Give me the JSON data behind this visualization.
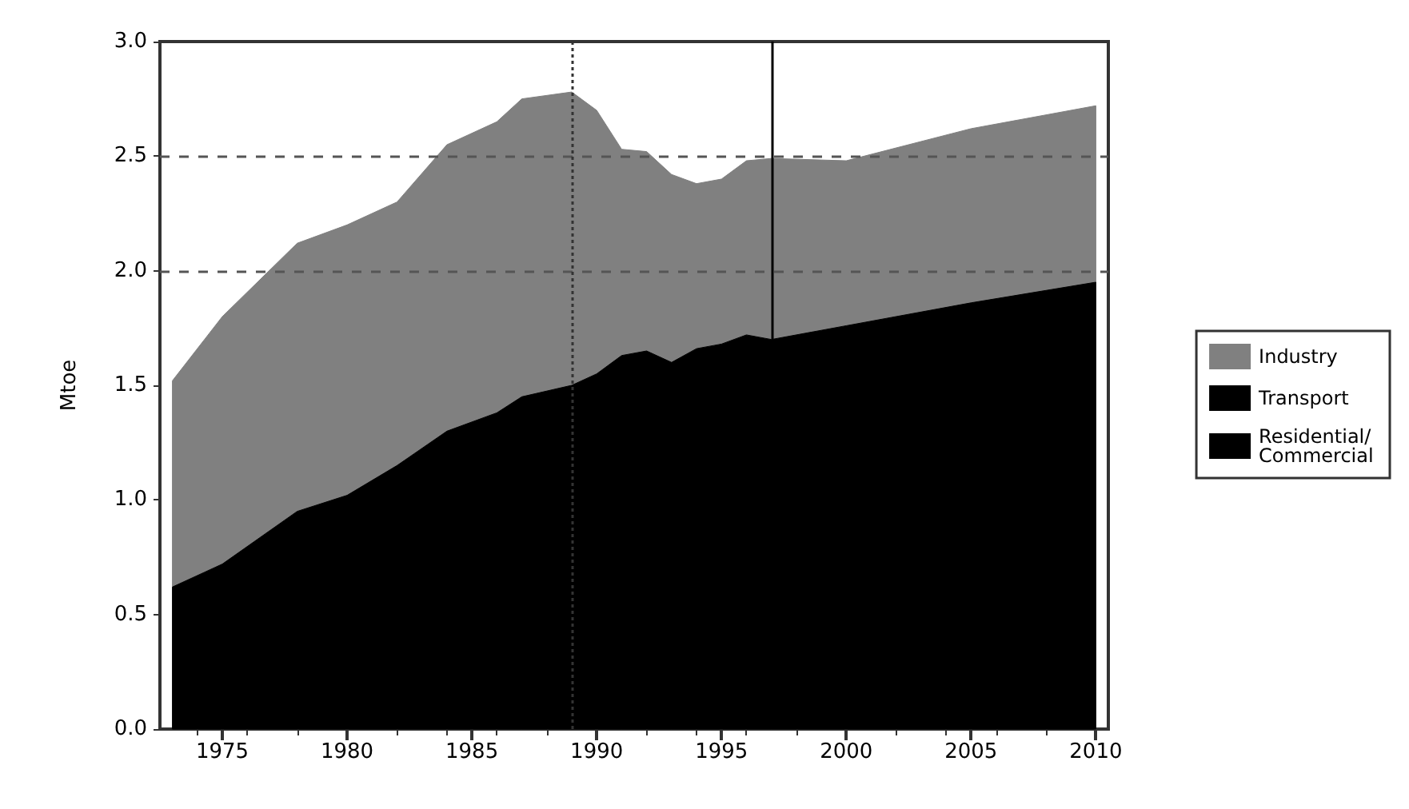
{
  "chart_data": {
    "type": "area",
    "stacked": true,
    "ylabel": "Mtoe",
    "x": [
      1973,
      1975,
      1978,
      1980,
      1982,
      1984,
      1986,
      1987,
      1989,
      1990,
      1991,
      1992,
      1993,
      1994,
      1995,
      1996,
      1997,
      2000,
      2005,
      2010
    ],
    "series": [
      {
        "name": "Residential/ Commercial",
        "color": "#000000",
        "values": [
          0.62,
          0.72,
          0.95,
          1.02,
          1.15,
          1.3,
          1.38,
          1.45,
          1.5,
          1.55,
          1.63,
          1.65,
          1.6,
          1.66,
          1.68,
          1.72,
          1.7,
          1.76,
          1.86,
          1.95
        ]
      },
      {
        "name": "Transport",
        "color": "#000000",
        "values": [
          null,
          null,
          null,
          null,
          null,
          null,
          null,
          null,
          null,
          null,
          null,
          null,
          null,
          null,
          null,
          null,
          null,
          null,
          null,
          null
        ]
      },
      {
        "name": "Industry",
        "color": "#808080",
        "values": [
          0.9,
          1.08,
          1.17,
          1.18,
          1.15,
          1.25,
          1.27,
          1.3,
          1.28,
          1.15,
          0.9,
          0.87,
          0.82,
          0.72,
          0.72,
          0.76,
          0.79,
          0.72,
          0.76,
          0.77
        ]
      }
    ],
    "xlim": [
      1972.5,
      2010.5
    ],
    "xticks": [
      1975,
      1980,
      1985,
      1990,
      1995,
      2000,
      2005,
      2010
    ],
    "ylim": [
      0,
      3
    ],
    "yticks": [
      {
        "value": 0,
        "label": "0.0"
      },
      0.5,
      {
        "value": 1,
        "label": "1.0"
      },
      1.5,
      {
        "value": 2,
        "label": "2.0"
      },
      2.5,
      {
        "value": 3,
        "label": "3.0"
      }
    ],
    "ref_lines": [
      {
        "axis": "y",
        "value": 2,
        "line_style": "dashed",
        "color": "#555555"
      },
      {
        "axis": "y",
        "value": 2.5,
        "line_style": "dashed",
        "color": "#555555"
      },
      {
        "axis": "x",
        "value": 1989,
        "line_style": "dotted",
        "color": "#333333"
      },
      {
        "axis": "x",
        "value": 1997,
        "line_style": "solid",
        "color": "#000000"
      }
    ],
    "grid": false,
    "legend": "right"
  }
}
